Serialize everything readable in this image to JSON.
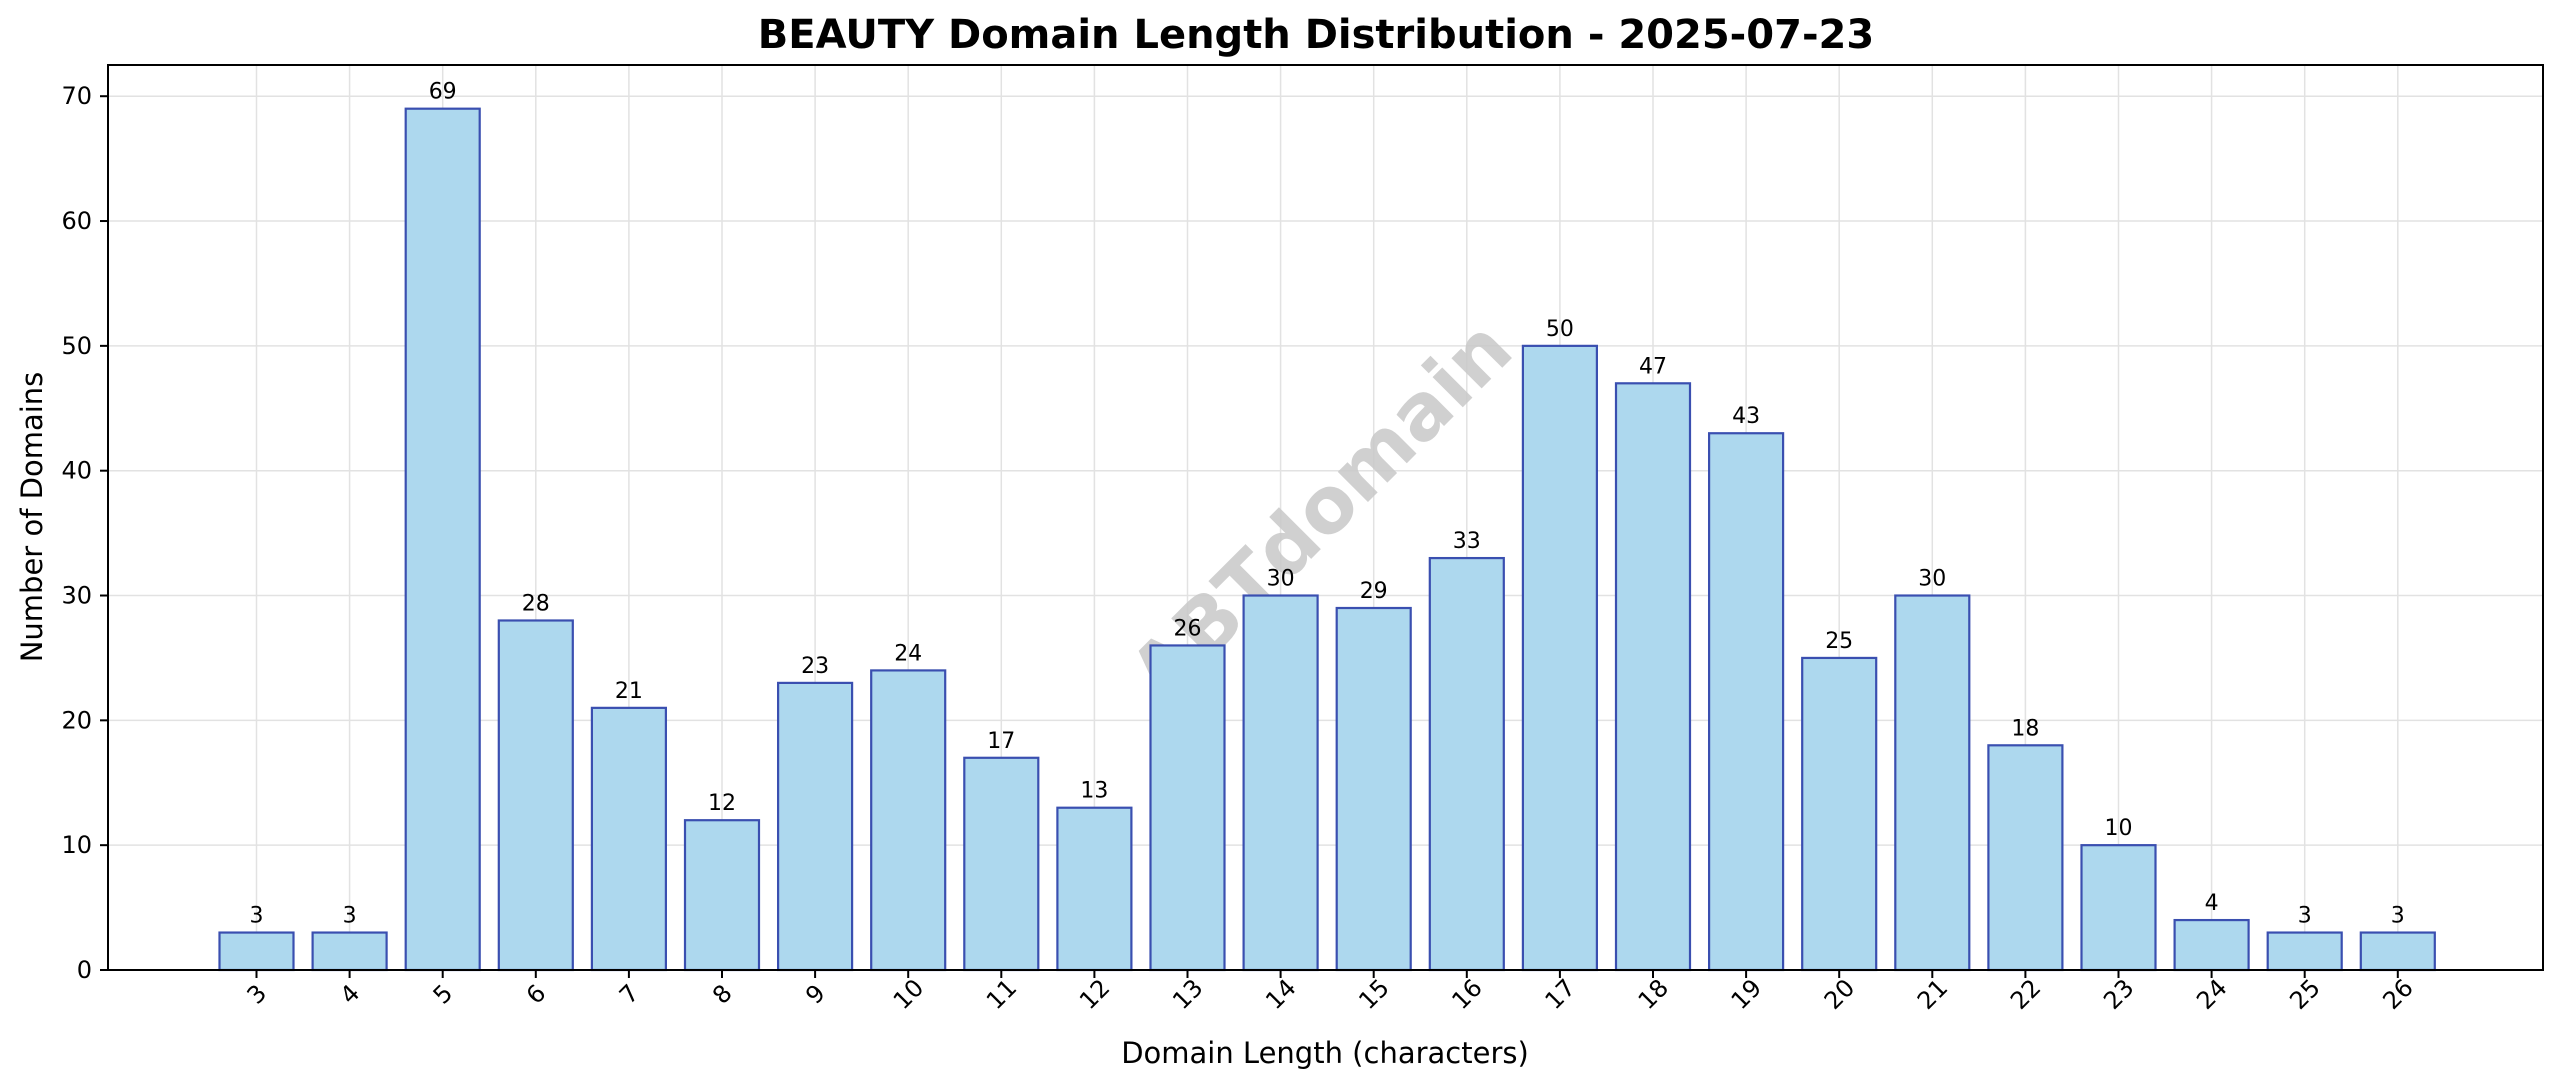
{
  "chart_data": {
    "type": "bar",
    "title": "BEAUTY Domain Length Distribution - 2025-07-23",
    "xlabel": "Domain Length (characters)",
    "ylabel": "Number of Domains",
    "categories": [
      "3",
      "4",
      "5",
      "6",
      "7",
      "8",
      "9",
      "10",
      "11",
      "12",
      "13",
      "14",
      "15",
      "16",
      "17",
      "18",
      "19",
      "20",
      "21",
      "22",
      "23",
      "24",
      "25",
      "26"
    ],
    "values": [
      3,
      3,
      69,
      28,
      21,
      12,
      23,
      24,
      17,
      13,
      26,
      30,
      29,
      33,
      50,
      47,
      43,
      25,
      30,
      18,
      10,
      4,
      3,
      3
    ],
    "ylim": [
      0,
      72.5
    ],
    "yticks": [
      0,
      10,
      20,
      30,
      40,
      50,
      60,
      70
    ],
    "grid": true,
    "watermark": "ABTdomain",
    "colors": {
      "bar_fill": "#add8ee",
      "bar_edge": "#3a4fb0",
      "grid": "#e2e2e2",
      "axis": "#000000"
    }
  }
}
